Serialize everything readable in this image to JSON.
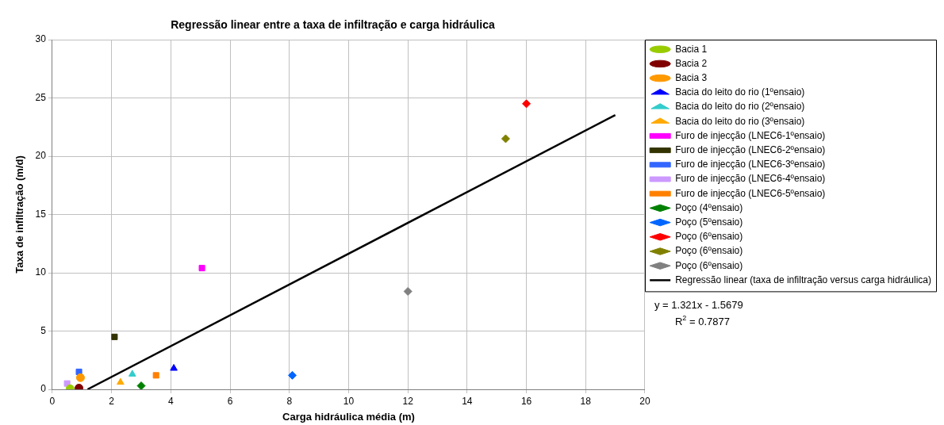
{
  "chart_data": {
    "type": "scatter",
    "title": "Regressão linear entre a taxa de infiltração e carga hidráulica",
    "xlabel": "Carga hidráulica média (m)",
    "ylabel": "Taxa de infiltração (m/d)",
    "xlim": [
      0,
      20
    ],
    "xticks": [
      0,
      2,
      4,
      6,
      8,
      10,
      12,
      14,
      16,
      18,
      20
    ],
    "ylim": [
      0,
      30
    ],
    "yticks": [
      0,
      5,
      10,
      15,
      20,
      25,
      30
    ],
    "grid": true,
    "legend": "right",
    "annotations": [
      "y = 1.321x - 1.5679",
      "R$^{2}$ = 0.7877"
    ],
    "series": [
      {
        "name": "Bacia 1",
        "color": "#99cc00",
        "marker": "circle",
        "x": [
          0.6
        ],
        "values": [
          0.05
        ]
      },
      {
        "name": "Bacia 2",
        "color": "#800000",
        "marker": "circle",
        "x": [
          0.9
        ],
        "values": [
          0.1
        ]
      },
      {
        "name": "Bacia 3",
        "color": "#ff9900",
        "marker": "circle",
        "x": [
          0.95
        ],
        "values": [
          1.0
        ]
      },
      {
        "name": "Bacia do leito do rio (1ºensaio)",
        "color": "#0000ff",
        "marker": "triangle",
        "x": [
          4.1
        ],
        "values": [
          1.8
        ]
      },
      {
        "name": "Bacia do leito do rio (2ºensaio)",
        "color": "#33cccc",
        "marker": "triangle",
        "x": [
          2.7
        ],
        "values": [
          1.3
        ]
      },
      {
        "name": "Bacia do leito do rio (3ºensaio)",
        "color": "#ffaa00",
        "marker": "triangle",
        "x": [
          2.3
        ],
        "values": [
          0.6
        ]
      },
      {
        "name": "Furo de injecção (LNEC6-1ºensaio)",
        "color": "#ff00ff",
        "marker": "square",
        "x": [
          5.05
        ],
        "values": [
          10.4
        ]
      },
      {
        "name": "Furo de injecção (LNEC6-2ºensaio)",
        "color": "#333300",
        "marker": "square",
        "x": [
          2.1
        ],
        "values": [
          4.5
        ]
      },
      {
        "name": "Furo de injecção (LNEC6-3ºensaio)",
        "color": "#3366ff",
        "marker": "square",
        "x": [
          0.9
        ],
        "values": [
          1.5
        ]
      },
      {
        "name": "Furo de injecção (LNEC6-4ºensaio)",
        "color": "#cc99ff",
        "marker": "square",
        "x": [
          0.5
        ],
        "values": [
          0.5
        ]
      },
      {
        "name": "Furo de injecção (LNEC6-5ºensaio)",
        "color": "#ff8000",
        "marker": "square",
        "x": [
          3.5
        ],
        "values": [
          1.2
        ]
      },
      {
        "name": "Poço (4ºensaio)",
        "color": "#008000",
        "marker": "diamond",
        "x": [
          3.0
        ],
        "values": [
          0.3
        ]
      },
      {
        "name": "Poço (5ºensaio)",
        "color": "#0066ff",
        "marker": "diamond",
        "x": [
          8.1
        ],
        "values": [
          1.2
        ]
      },
      {
        "name": "Poço (6ºensaio)",
        "color": "#ff0000",
        "marker": "diamond",
        "x": [
          16.0
        ],
        "values": [
          24.5
        ]
      },
      {
        "name": "Poço (6ºensaio)",
        "color": "#808000",
        "marker": "diamond",
        "x": [
          15.3
        ],
        "values": [
          21.5
        ]
      },
      {
        "name": "Poço (6ºensaio)",
        "color": "#808080",
        "marker": "diamond",
        "x": [
          12.0
        ],
        "values": [
          8.4
        ]
      },
      {
        "name": "Regressão linear (taxa de infiltração versus carga hidráulica)",
        "type": "line",
        "color": "#000000",
        "marker": "none",
        "line_style": "solid",
        "x": [
          1.19,
          19
        ],
        "values": [
          0,
          23.53
        ]
      }
    ]
  }
}
